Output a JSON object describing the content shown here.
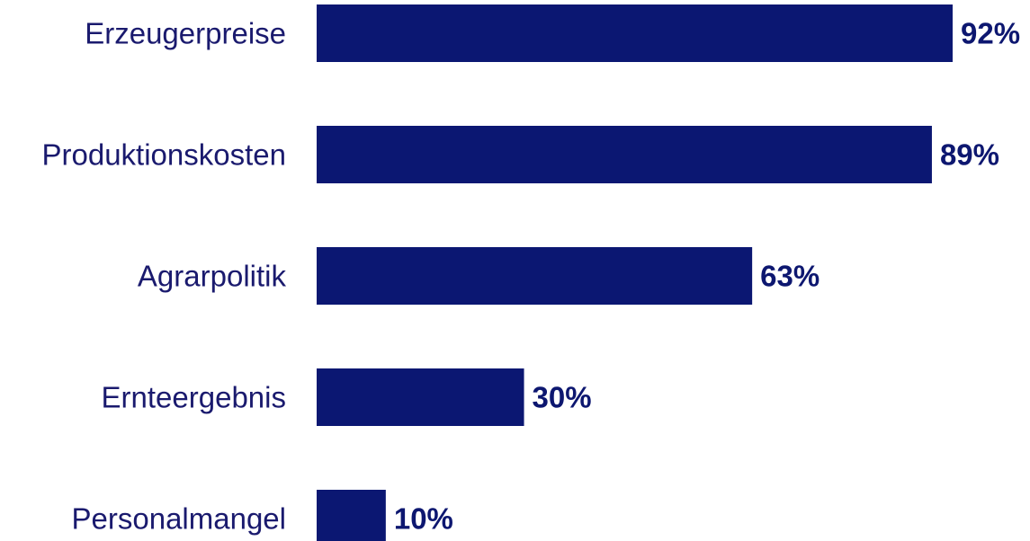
{
  "chart_data": {
    "type": "bar",
    "orientation": "horizontal",
    "categories": [
      "Erzeugerpreise",
      "Produktionskosten",
      "Agrarpolitik",
      "Ernteergebnis",
      "Personalmangel"
    ],
    "values": [
      92,
      89,
      63,
      30,
      10
    ],
    "value_labels": [
      "92%",
      "89%",
      "63%",
      "30%",
      "10%"
    ],
    "unit": "%",
    "xlim": [
      0,
      100
    ],
    "grid": false,
    "legend": "none",
    "title": "",
    "xlabel": "",
    "ylabel": "",
    "colors": {
      "bar": "#0b1772",
      "category_text": "#1a1a6e",
      "value_text": "#0d1770"
    }
  }
}
